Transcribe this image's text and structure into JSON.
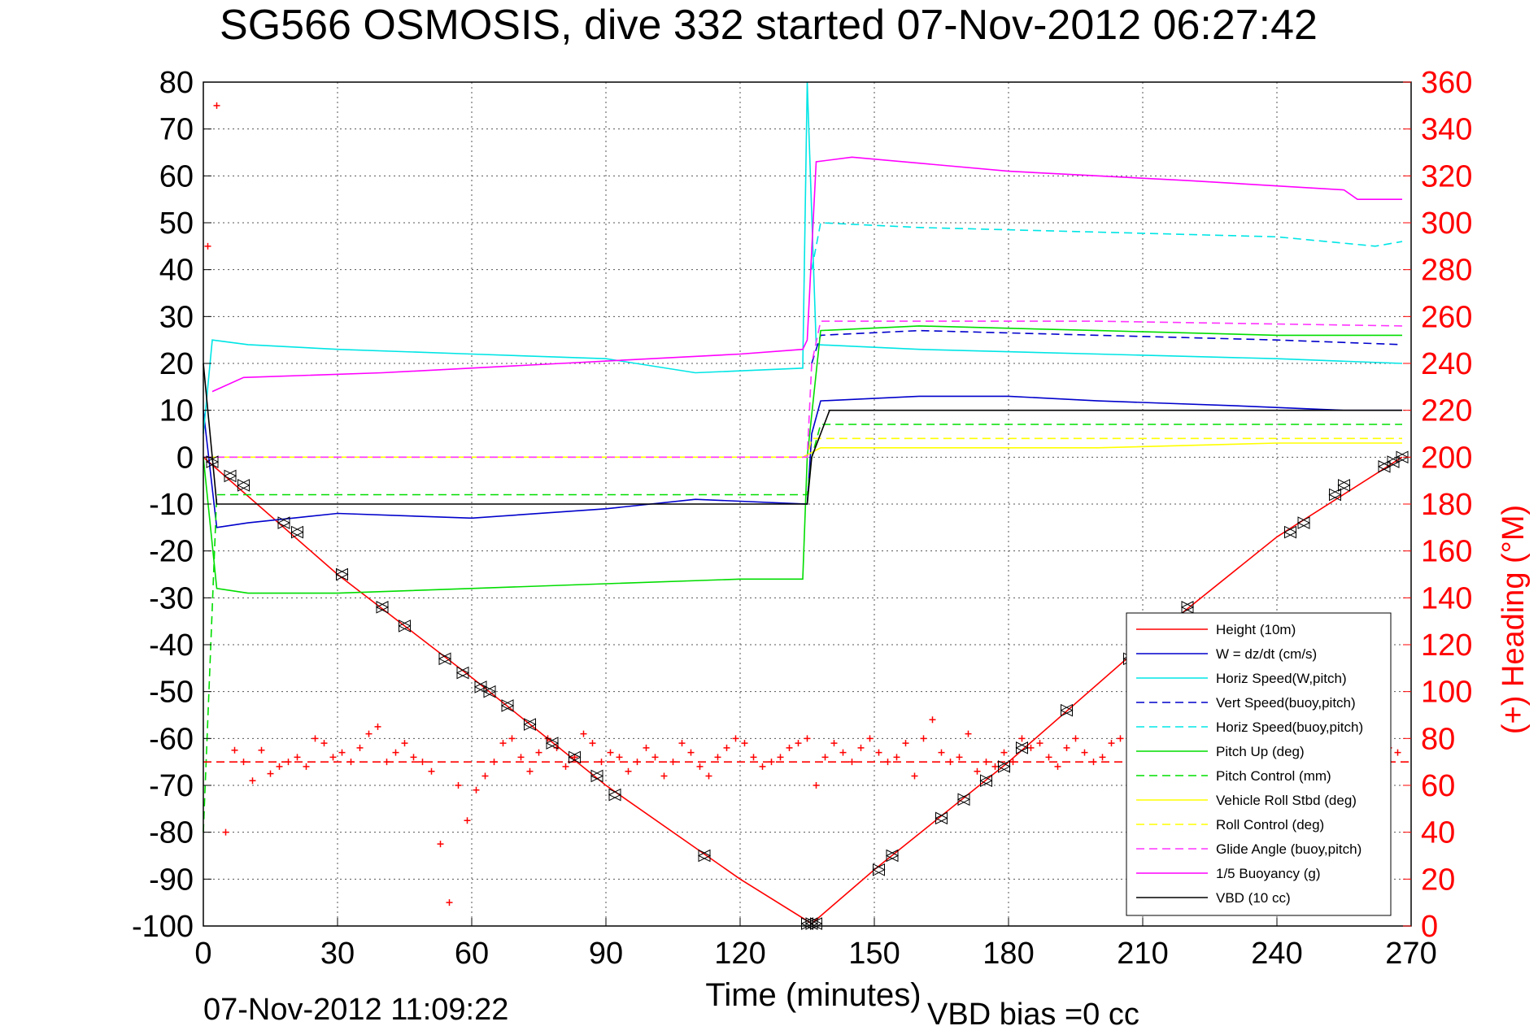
{
  "title": "SG566 OSMOSIS, dive 332 started 07-Nov-2012 06:27:42",
  "footer": {
    "timestamp": "07-Nov-2012 11:09:22",
    "vbd_bias": "VBD bias =0 cc"
  },
  "colors": {
    "height": "#ff0000",
    "w": "#0000cc",
    "horiz_w": "#00e5e5",
    "vert_buoy": "#0000cc",
    "horiz_buoy": "#00e5e5",
    "pitch": "#00dd00",
    "pitch_control": "#00dd00",
    "roll": "#ffff00",
    "roll_control": "#ffff00",
    "glide": "#ff33ff",
    "buoyancy": "#ff00ff",
    "vbd": "#000000",
    "heading": "#ff0000",
    "grid": "#555555"
  },
  "chart_data": {
    "type": "line",
    "title": "SG566 OSMOSIS, dive 332 started 07-Nov-2012 06:27:42",
    "xlabel": "Time (minutes)",
    "ylabel": "",
    "y2label": "(+) Heading (°M)",
    "xlim": [
      0,
      270
    ],
    "ylim": [
      -100,
      80
    ],
    "y2lim": [
      0,
      360
    ],
    "xticks": [
      0,
      30,
      60,
      90,
      120,
      150,
      180,
      210,
      240,
      270
    ],
    "yticks": [
      80,
      70,
      60,
      50,
      40,
      30,
      20,
      10,
      0,
      -10,
      -20,
      -30,
      -40,
      -50,
      -60,
      -70,
      -80,
      -90,
      -100
    ],
    "y2ticks": [
      360,
      340,
      320,
      300,
      280,
      260,
      240,
      220,
      200,
      180,
      160,
      140,
      120,
      100,
      80,
      60,
      40,
      20,
      0
    ],
    "grid": true,
    "legend_position": "bottom-right",
    "legend": [
      {
        "label": "Height (10m)",
        "key": "height",
        "dash": "solid"
      },
      {
        "label": "W = dz/dt (cm/s)",
        "key": "w",
        "dash": "solid"
      },
      {
        "label": "Horiz Speed(W,pitch)",
        "key": "horiz_w",
        "dash": "solid"
      },
      {
        "label": "Vert Speed(buoy,pitch)",
        "key": "vert_buoy",
        "dash": "dashed"
      },
      {
        "label": "Horiz Speed(buoy,pitch)",
        "key": "horiz_buoy",
        "dash": "dashed"
      },
      {
        "label": "Pitch Up (deg)",
        "key": "pitch",
        "dash": "solid"
      },
      {
        "label": "Pitch Control (mm)",
        "key": "pitch_control",
        "dash": "dashed"
      },
      {
        "label": "Vehicle Roll Stbd (deg)",
        "key": "roll",
        "dash": "solid"
      },
      {
        "label": "Roll Control (deg)",
        "key": "roll_control",
        "dash": "dashed"
      },
      {
        "label": "Glide Angle (buoy,pitch)",
        "key": "glide",
        "dash": "dashed"
      },
      {
        "label": "1/5 Buoyancy (g)",
        "key": "buoyancy",
        "dash": "solid"
      },
      {
        "label": "VBD (10 cc)",
        "key": "vbd",
        "dash": "solid"
      }
    ],
    "series": [
      {
        "name": "Height (10m)",
        "key": "height",
        "axis": "left",
        "x": [
          0,
          30,
          60,
          90,
          120,
          136,
          150,
          180,
          210,
          240,
          268
        ],
        "y": [
          0,
          -25,
          -47,
          -70,
          -90,
          -99.5,
          -88,
          -65,
          -40,
          -17,
          0
        ]
      },
      {
        "name": "W = dz/dt (cm/s)",
        "key": "w",
        "axis": "left",
        "x": [
          0,
          3,
          10,
          20,
          30,
          60,
          90,
          110,
          135,
          136,
          138,
          160,
          180,
          200,
          230,
          255,
          268
        ],
        "y": [
          10,
          -15,
          -14,
          -13,
          -12,
          -13,
          -11,
          -9,
          -10,
          5,
          12,
          13,
          13,
          12,
          11,
          10,
          10
        ]
      },
      {
        "name": "Horiz Speed(W,pitch)",
        "key": "horiz_w",
        "axis": "left",
        "x": [
          0,
          2,
          10,
          30,
          60,
          90,
          110,
          134,
          135,
          137,
          160,
          200,
          240,
          268
        ],
        "y": [
          5,
          25,
          24,
          23,
          22,
          21,
          18,
          19,
          80,
          24,
          23,
          22,
          21,
          20
        ]
      },
      {
        "name": "Vert Speed(buoy,pitch)",
        "key": "vert_buoy",
        "axis": "left",
        "x": [
          136,
          138,
          160,
          200,
          240,
          268
        ],
        "y": [
          20,
          26,
          27,
          26,
          25,
          24
        ]
      },
      {
        "name": "Horiz Speed(buoy,pitch)",
        "key": "horiz_buoy",
        "axis": "left",
        "x": [
          136,
          138,
          160,
          200,
          240,
          262,
          268
        ],
        "y": [
          40,
          50,
          49,
          48,
          47,
          45,
          46
        ]
      },
      {
        "name": "Pitch Up (deg)",
        "key": "pitch",
        "axis": "left",
        "x": [
          0,
          3,
          10,
          30,
          60,
          90,
          120,
          134,
          135,
          138,
          160,
          200,
          240,
          268
        ],
        "y": [
          0,
          -28,
          -29,
          -29,
          -28,
          -27,
          -26,
          -26,
          0,
          27,
          28,
          27,
          26,
          26
        ]
      },
      {
        "name": "Pitch Control (mm)",
        "key": "pitch_control",
        "axis": "left",
        "x": [
          0,
          3,
          10,
          135,
          136,
          138,
          268
        ],
        "y": [
          -80,
          -8,
          -8,
          -8,
          0,
          7,
          7
        ]
      },
      {
        "name": "Vehicle Roll Stbd (deg)",
        "key": "roll",
        "axis": "left",
        "x": [
          0,
          30,
          60,
          90,
          134,
          138,
          170,
          200,
          240,
          268
        ],
        "y": [
          0,
          0,
          0,
          0,
          0,
          2,
          2,
          2,
          3,
          3
        ]
      },
      {
        "name": "Roll Control (deg)",
        "key": "roll_control",
        "axis": "left",
        "x": [
          0,
          135,
          136,
          268
        ],
        "y": [
          0,
          0,
          4,
          4
        ]
      },
      {
        "name": "Glide Angle (buoy,pitch)",
        "key": "glide",
        "axis": "left",
        "x": [
          0,
          135,
          136,
          138,
          200,
          268
        ],
        "y": [
          0,
          0,
          20,
          29,
          29,
          28
        ]
      },
      {
        "name": "1/5 Buoyancy (g)",
        "key": "buoyancy",
        "axis": "left",
        "x": [
          2,
          9,
          40,
          80,
          120,
          134,
          135,
          137,
          145,
          180,
          220,
          255,
          258,
          268
        ],
        "y": [
          14,
          17,
          18,
          20,
          22,
          23,
          25,
          63,
          64,
          61,
          59,
          57,
          55,
          55
        ]
      },
      {
        "name": "VBD (10 cc)",
        "key": "vbd",
        "axis": "left",
        "x": [
          0,
          2,
          3,
          135,
          136,
          140,
          268
        ],
        "y": [
          20,
          0,
          -10,
          -10,
          0,
          10,
          10
        ]
      },
      {
        "name": "(+) Heading (°M)",
        "key": "heading",
        "axis": "right",
        "style": "markers",
        "x": [
          1,
          3,
          5,
          7,
          9,
          11,
          13,
          15,
          17,
          19,
          21,
          23,
          25,
          27,
          29,
          31,
          33,
          35,
          37,
          39,
          41,
          43,
          45,
          47,
          49,
          51,
          53,
          55,
          57,
          59,
          61,
          63,
          65,
          67,
          69,
          71,
          73,
          75,
          77,
          79,
          81,
          83,
          85,
          87,
          89,
          91,
          93,
          95,
          97,
          99,
          101,
          103,
          105,
          107,
          109,
          111,
          113,
          115,
          117,
          119,
          121,
          123,
          125,
          127,
          129,
          131,
          133,
          135,
          137,
          139,
          141,
          143,
          145,
          147,
          149,
          151,
          153,
          155,
          157,
          159,
          161,
          163,
          165,
          167,
          169,
          171,
          173,
          175,
          177,
          179,
          181,
          183,
          185,
          187,
          189,
          191,
          193,
          195,
          197,
          199,
          201,
          203,
          205,
          207,
          209,
          211,
          213,
          215,
          217,
          219,
          221,
          223,
          225,
          227,
          229,
          231,
          233,
          235,
          237,
          239,
          241,
          243,
          245,
          247,
          249,
          251,
          253,
          255,
          257,
          259,
          261,
          263,
          265,
          267
        ],
        "y": [
          290,
          350,
          40,
          75,
          70,
          62,
          75,
          65,
          68,
          70,
          72,
          68,
          80,
          78,
          72,
          74,
          70,
          76,
          82,
          85,
          70,
          74,
          78,
          72,
          70,
          66,
          35,
          10,
          60,
          45,
          58,
          64,
          70,
          78,
          80,
          72,
          66,
          74,
          80,
          76,
          68,
          72,
          82,
          78,
          70,
          74,
          72,
          66,
          70,
          76,
          72,
          64,
          70,
          78,
          74,
          68,
          64,
          72,
          76,
          80,
          78,
          72,
          68,
          70,
          72,
          76,
          78,
          80,
          60,
          72,
          78,
          74,
          70,
          76,
          80,
          74,
          70,
          72,
          78,
          64,
          80,
          88,
          74,
          70,
          72,
          82,
          66,
          70,
          68,
          74,
          70,
          80,
          76,
          78,
          72,
          68,
          76,
          80,
          74,
          70,
          72,
          78,
          80,
          70,
          74,
          76,
          72,
          68,
          72,
          74,
          76,
          78,
          70,
          72,
          80,
          74,
          70,
          72,
          78,
          76,
          70,
          74,
          72,
          78,
          76,
          74,
          70,
          72,
          76,
          74,
          70,
          72,
          76,
          74
        ]
      },
      {
        "name": "Heading mean",
        "key": "heading",
        "axis": "right",
        "style": "dashed",
        "x": [
          0,
          270
        ],
        "y": [
          70,
          70
        ]
      }
    ],
    "markers": {
      "x": [
        2,
        6,
        9,
        18,
        21,
        31,
        40,
        45,
        54,
        58,
        62,
        64,
        68,
        73,
        78,
        83,
        88,
        92,
        112,
        135,
        136,
        137,
        151,
        154,
        165,
        170,
        175,
        179,
        183,
        193,
        207,
        220,
        243,
        246,
        253,
        255,
        264,
        266,
        268
      ],
      "y": [
        -1,
        -4,
        -6,
        -14,
        -16,
        -25,
        -32,
        -36,
        -43,
        -46,
        -49,
        -50,
        -53,
        -57,
        -61,
        -64,
        -68,
        -72,
        -85,
        -99.5,
        -99.5,
        -99.5,
        -88,
        -85,
        -77,
        -73,
        -69,
        -66,
        -62,
        -54,
        -43,
        -32,
        -16,
        -14,
        -8,
        -6,
        -2,
        -1,
        0
      ]
    }
  }
}
